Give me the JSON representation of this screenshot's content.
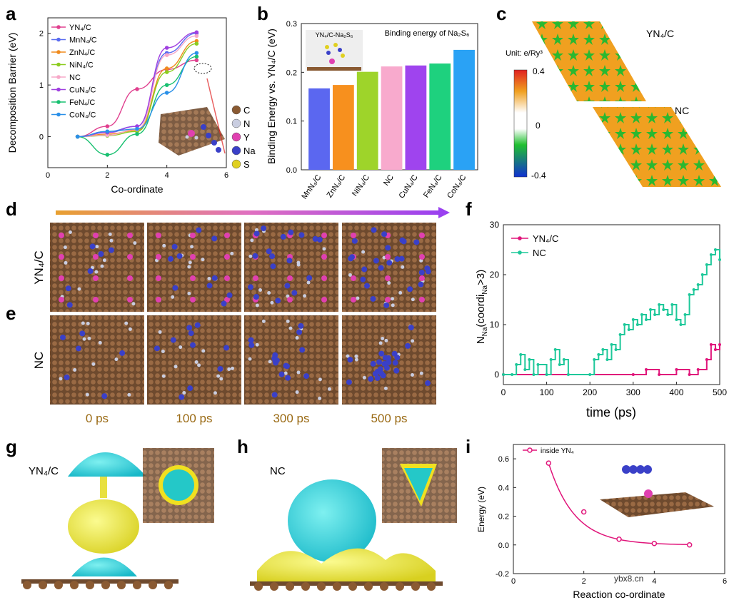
{
  "panel_labels": [
    "a",
    "b",
    "c",
    "d",
    "e",
    "f",
    "g",
    "h",
    "i"
  ],
  "chart_data": [
    {
      "panel": "a",
      "type": "line",
      "xlabel": "Co-ordinate",
      "ylabel": "Decomposition Barrier (eV)",
      "xlim": [
        0,
        6
      ],
      "ylim": [
        -0.6,
        2.3
      ],
      "xticks": [
        0,
        2,
        4,
        6
      ],
      "yticks": [
        0,
        1,
        2
      ],
      "x": [
        1,
        2,
        3,
        4,
        5
      ],
      "series": [
        {
          "name": "YN4/C",
          "label": "YN₄/C",
          "color": "#e0408f",
          "values": [
            0,
            0.2,
            0.92,
            1.3,
            1.48
          ]
        },
        {
          "name": "MnN4/C",
          "label": "MnN₄/C",
          "color": "#5a6cf0",
          "values": [
            0,
            0.1,
            0.2,
            1.62,
            2.0
          ]
        },
        {
          "name": "ZnN4/C",
          "label": "ZnN₄/C",
          "color": "#f08a1c",
          "values": [
            0,
            0.05,
            0.12,
            1.32,
            1.85
          ]
        },
        {
          "name": "NiN4/C",
          "label": "NiN₄/C",
          "color": "#8ccc20",
          "values": [
            0,
            0.02,
            0.1,
            1.25,
            1.8
          ]
        },
        {
          "name": "NC",
          "label": "NC",
          "color": "#f7a8c8",
          "values": [
            0,
            0.03,
            0.14,
            1.58,
            1.95
          ]
        },
        {
          "name": "CuN4/C",
          "label": "CuN₄/C",
          "color": "#a040e0",
          "values": [
            0,
            0.08,
            0.2,
            1.72,
            2.02
          ]
        },
        {
          "name": "FeN4/C",
          "label": "FeN₄/C",
          "color": "#18c070",
          "values": [
            0,
            -0.35,
            0.05,
            1.0,
            1.55
          ]
        },
        {
          "name": "CoN4/C",
          "label": "CoN₄/C",
          "color": "#2a90e8",
          "values": [
            0,
            0.1,
            0.15,
            0.85,
            1.62
          ]
        }
      ],
      "atom_legend": [
        {
          "label": "C",
          "color": "#8a5a32"
        },
        {
          "label": "N",
          "color": "#c9cde0"
        },
        {
          "label": "Y",
          "color": "#e040b0"
        },
        {
          "label": "Na",
          "color": "#3a40c8"
        },
        {
          "label": "S",
          "color": "#e0d020"
        }
      ]
    },
    {
      "panel": "b",
      "type": "bar",
      "title": "Binding energy of Na₂S₆",
      "inset_label": "YN₄/C-Na₂S₆",
      "ylabel": "Binding Energy vs. YN₄/C (eV)",
      "ylim": [
        0,
        0.3
      ],
      "yticks": [
        "0.0",
        "0.1",
        "0.2",
        "0.3"
      ],
      "categories": [
        "MnN₄/C",
        "ZnN₄/C",
        "NiN₄/C",
        "NC",
        "CuN₄/C",
        "FeN₄/C",
        "CoN₄/C"
      ],
      "values": [
        0.167,
        0.174,
        0.201,
        0.212,
        0.214,
        0.218,
        0.246
      ],
      "colors": [
        "#5b67f0",
        "#f7901e",
        "#9ed42a",
        "#f8aacd",
        "#9f44ee",
        "#1ed17e",
        "#2aa2f5"
      ]
    },
    {
      "panel": "f",
      "type": "line",
      "xlabel": "time (ps)",
      "ylabel": "N",
      "ylabel_sub": "Na",
      "ylabel_paren": "(coordi",
      "ylabel_sub2": "Na",
      "ylabel_tail": ">3)",
      "xlim": [
        0,
        500
      ],
      "ylim": [
        -2,
        30
      ],
      "xticks": [
        0,
        100,
        200,
        300,
        400,
        500
      ],
      "yticks": [
        0,
        10,
        20,
        30
      ],
      "series": [
        {
          "name": "YN4/C",
          "label": "YN₄/C",
          "color": "#e0147a",
          "x": [
            0,
            300,
            330,
            360,
            400,
            430,
            450,
            470,
            480,
            490,
            500
          ],
          "values": [
            0,
            0,
            1,
            0,
            1,
            0,
            1,
            3,
            6,
            5,
            6
          ]
        },
        {
          "name": "NC",
          "label": "NC",
          "color": "#1ec89a",
          "x": [
            0,
            20,
            30,
            40,
            50,
            60,
            70,
            80,
            100,
            110,
            120,
            130,
            140,
            150,
            200,
            210,
            220,
            230,
            240,
            250,
            260,
            270,
            280,
            290,
            300,
            310,
            320,
            330,
            340,
            350,
            360,
            370,
            380,
            390,
            400,
            410,
            420,
            430,
            440,
            450,
            460,
            470,
            480,
            490,
            500
          ],
          "values": [
            0,
            0,
            2,
            4,
            1,
            3,
            0,
            2,
            0,
            3,
            5,
            2,
            3,
            0,
            0,
            3,
            4,
            5,
            3,
            6,
            5,
            8,
            10,
            9,
            11,
            10,
            12,
            11,
            13,
            12,
            14,
            13,
            12,
            14,
            11,
            10,
            12,
            16,
            17,
            18,
            20,
            22,
            24,
            25,
            23
          ]
        }
      ]
    },
    {
      "panel": "i",
      "type": "scatter",
      "legend": "inside YN₄",
      "xlabel": "Reaction co-ordinate",
      "ylabel": "Energy (eV)",
      "xlim": [
        0,
        6
      ],
      "ylim": [
        -0.2,
        0.7
      ],
      "xticks": [
        0,
        2,
        4,
        6
      ],
      "yticks": [
        "-0.2",
        "0.0",
        "0.2",
        "0.4",
        "0.6"
      ],
      "x": [
        1,
        2,
        3,
        4,
        5
      ],
      "values": [
        0.57,
        0.23,
        0.04,
        0.01,
        0.0
      ],
      "color": "#e0147a"
    }
  ],
  "panel_c": {
    "unit_label": "Unit: e/Ry³",
    "scale_max": "0.4",
    "scale_mid": "0",
    "scale_min": "-0.4",
    "top_label": "YN₄/C",
    "bottom_label": "NC"
  },
  "panels_de": {
    "row_d_label": "YN₄/C",
    "row_e_label": "NC",
    "time_labels": [
      "0 ps",
      "100 ps",
      "300 ps",
      "500 ps"
    ]
  },
  "panel_g": {
    "label": "YN₄/C"
  },
  "panel_h": {
    "label": "NC"
  },
  "watermark": "ybx8.cn"
}
